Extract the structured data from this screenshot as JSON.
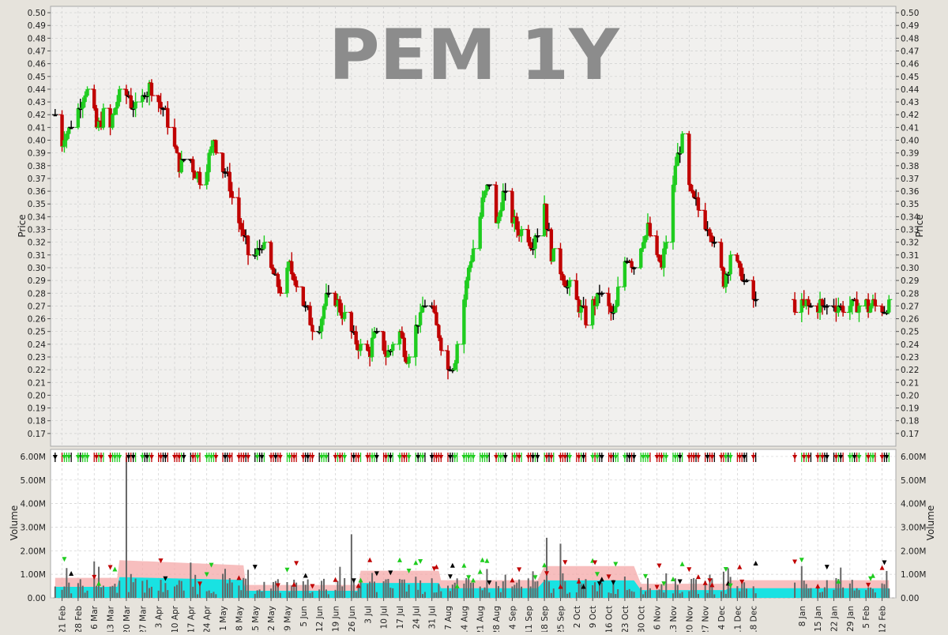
{
  "chart_data": [
    {
      "type": "ohlc",
      "title": "PEM 1Y",
      "ylabel": "Price",
      "ylim": [
        0.16,
        0.505
      ],
      "y_ticks": [
        0.17,
        0.18,
        0.19,
        0.2,
        0.21,
        0.22,
        0.23,
        0.24,
        0.25,
        0.26,
        0.27,
        0.28,
        0.29,
        0.3,
        0.31,
        0.32,
        0.33,
        0.34,
        0.35,
        0.36,
        0.37,
        0.38,
        0.39,
        0.4,
        0.41,
        0.42,
        0.43,
        0.44,
        0.45,
        0.46,
        0.47,
        0.48,
        0.49,
        0.5
      ],
      "y_tick_labels": [
        "0.17",
        "0.18",
        "0.19",
        "0.20",
        "0.21",
        "0.22",
        "0.23",
        "0.24",
        "0.25",
        "0.26",
        "0.27",
        "0.28",
        "0.29",
        "0.30",
        "0.31",
        "0.32",
        "0.33",
        "0.34",
        "0.35",
        "0.36",
        "0.37",
        "0.38",
        "0.39",
        "0.40",
        "0.41",
        "0.42",
        "0.43",
        "0.44",
        "0.45",
        "0.46",
        "0.47",
        "0.48",
        "0.49",
        "0.50"
      ],
      "grid": true,
      "colors": {
        "up": "#1fcc1f",
        "down": "#c00000",
        "flat": "#000000",
        "background": "#f1f0ee",
        "grid": "#cfcfcf"
      },
      "x_tick_labels": [
        "21 Feb",
        "28 Feb",
        "6 Mar",
        "13 Mar",
        "20 Mar",
        "27 Mar",
        "3 Apr",
        "10 Apr",
        "17 Apr",
        "24 Apr",
        "1 May",
        "8 May",
        "15 May",
        "22 May",
        "29 May",
        "5 Jun",
        "12 Jun",
        "19 Jun",
        "26 Jun",
        "3 Jul",
        "10 Jul",
        "17 Jul",
        "24 Jul",
        "31 Jul",
        "7 Aug",
        "14 Aug",
        "21 Aug",
        "28 Aug",
        "4 Sep",
        "11 Sep",
        "18 Sep",
        "25 Sep",
        "2 Oct",
        "9 Oct",
        "16 Oct",
        "23 Oct",
        "30 Oct",
        "6 Nov",
        "13 Nov",
        "20 Nov",
        "27 Nov",
        "4 Dec",
        "11 Dec",
        "18 Dec",
        "8 Jan",
        "15 Jan",
        "22 Jan",
        "29 Jan",
        "5 Feb",
        "12 Feb"
      ],
      "x_tick_days": [
        0,
        7,
        14,
        21,
        28,
        35,
        42,
        49,
        56,
        63,
        70,
        77,
        84,
        91,
        98,
        105,
        112,
        119,
        126,
        133,
        140,
        147,
        154,
        161,
        168,
        175,
        182,
        189,
        196,
        203,
        210,
        217,
        224,
        231,
        238,
        245,
        252,
        259,
        266,
        273,
        280,
        287,
        294,
        301,
        322,
        329,
        336,
        343,
        350,
        357
      ],
      "anchors": [
        [
          -3,
          0.42
        ],
        [
          0,
          0.4
        ],
        [
          3,
          0.41
        ],
        [
          6,
          0.42
        ],
        [
          8,
          0.43
        ],
        [
          10,
          0.44
        ],
        [
          13,
          0.43
        ],
        [
          15,
          0.41
        ],
        [
          18,
          0.42
        ],
        [
          21,
          0.41
        ],
        [
          24,
          0.43
        ],
        [
          27,
          0.44
        ],
        [
          30,
          0.43
        ],
        [
          33,
          0.42
        ],
        [
          36,
          0.44
        ],
        [
          39,
          0.44
        ],
        [
          42,
          0.43
        ],
        [
          45,
          0.42
        ],
        [
          48,
          0.4
        ],
        [
          51,
          0.38
        ],
        [
          54,
          0.39
        ],
        [
          57,
          0.38
        ],
        [
          60,
          0.37
        ],
        [
          63,
          0.38
        ],
        [
          66,
          0.4
        ],
        [
          69,
          0.38
        ],
        [
          72,
          0.37
        ],
        [
          75,
          0.35
        ],
        [
          78,
          0.33
        ],
        [
          81,
          0.31
        ],
        [
          84,
          0.31
        ],
        [
          87,
          0.32
        ],
        [
          90,
          0.3
        ],
        [
          93,
          0.29
        ],
        [
          96,
          0.28
        ],
        [
          99,
          0.3
        ],
        [
          102,
          0.29
        ],
        [
          105,
          0.27
        ],
        [
          108,
          0.26
        ],
        [
          111,
          0.25
        ],
        [
          114,
          0.27
        ],
        [
          117,
          0.28
        ],
        [
          120,
          0.27
        ],
        [
          123,
          0.26
        ],
        [
          126,
          0.25
        ],
        [
          129,
          0.24
        ],
        [
          132,
          0.23
        ],
        [
          135,
          0.24
        ],
        [
          138,
          0.25
        ],
        [
          141,
          0.23
        ],
        [
          144,
          0.24
        ],
        [
          147,
          0.25
        ],
        [
          150,
          0.23
        ],
        [
          153,
          0.25
        ],
        [
          156,
          0.26
        ],
        [
          159,
          0.28
        ],
        [
          162,
          0.26
        ],
        [
          165,
          0.24
        ],
        [
          168,
          0.22
        ],
        [
          171,
          0.23
        ],
        [
          174,
          0.26
        ],
        [
          177,
          0.3
        ],
        [
          180,
          0.32
        ],
        [
          183,
          0.35
        ],
        [
          186,
          0.37
        ],
        [
          189,
          0.33
        ],
        [
          192,
          0.36
        ],
        [
          195,
          0.34
        ],
        [
          198,
          0.33
        ],
        [
          201,
          0.33
        ],
        [
          204,
          0.32
        ],
        [
          207,
          0.33
        ],
        [
          210,
          0.35
        ],
        [
          213,
          0.31
        ],
        [
          216,
          0.3
        ],
        [
          219,
          0.29
        ],
        [
          222,
          0.28
        ],
        [
          225,
          0.27
        ],
        [
          228,
          0.26
        ],
        [
          231,
          0.27
        ],
        [
          234,
          0.28
        ],
        [
          237,
          0.27
        ],
        [
          240,
          0.26
        ],
        [
          243,
          0.29
        ],
        [
          246,
          0.31
        ],
        [
          249,
          0.3
        ],
        [
          252,
          0.32
        ],
        [
          255,
          0.33
        ],
        [
          258,
          0.31
        ],
        [
          261,
          0.3
        ],
        [
          264,
          0.33
        ],
        [
          267,
          0.38
        ],
        [
          270,
          0.4
        ],
        [
          273,
          0.36
        ],
        [
          276,
          0.35
        ],
        [
          279,
          0.34
        ],
        [
          282,
          0.33
        ],
        [
          285,
          0.31
        ],
        [
          288,
          0.29
        ],
        [
          291,
          0.31
        ],
        [
          294,
          0.3
        ],
        [
          297,
          0.29
        ],
        [
          300,
          0.28
        ],
        [
          303,
          0.27
        ],
        [
          305,
          0.27
        ]
      ]
    },
    {
      "type": "bar",
      "ylabel": "Volume",
      "ylim": [
        0,
        6300000
      ],
      "y_ticks": [
        0,
        1000000,
        2000000,
        3000000,
        4000000,
        5000000,
        6000000
      ],
      "y_tick_labels": [
        "0.00",
        "1.00M",
        "2.00M",
        "3.00M",
        "4.00M",
        "5.00M",
        "6.00M"
      ],
      "spikes": [
        [
          -1,
          6000000
        ],
        [
          8,
          2700000
        ],
        [
          34,
          2600000
        ],
        [
          35,
          2300000
        ],
        [
          59,
          1500000
        ],
        [
          65,
          1400000
        ],
        [
          22,
          1600000
        ]
      ],
      "colors": {
        "bars": "#666666",
        "band_outer": "#f4a8a8",
        "band_inner": "#00e5e5"
      },
      "markers": true
    }
  ]
}
